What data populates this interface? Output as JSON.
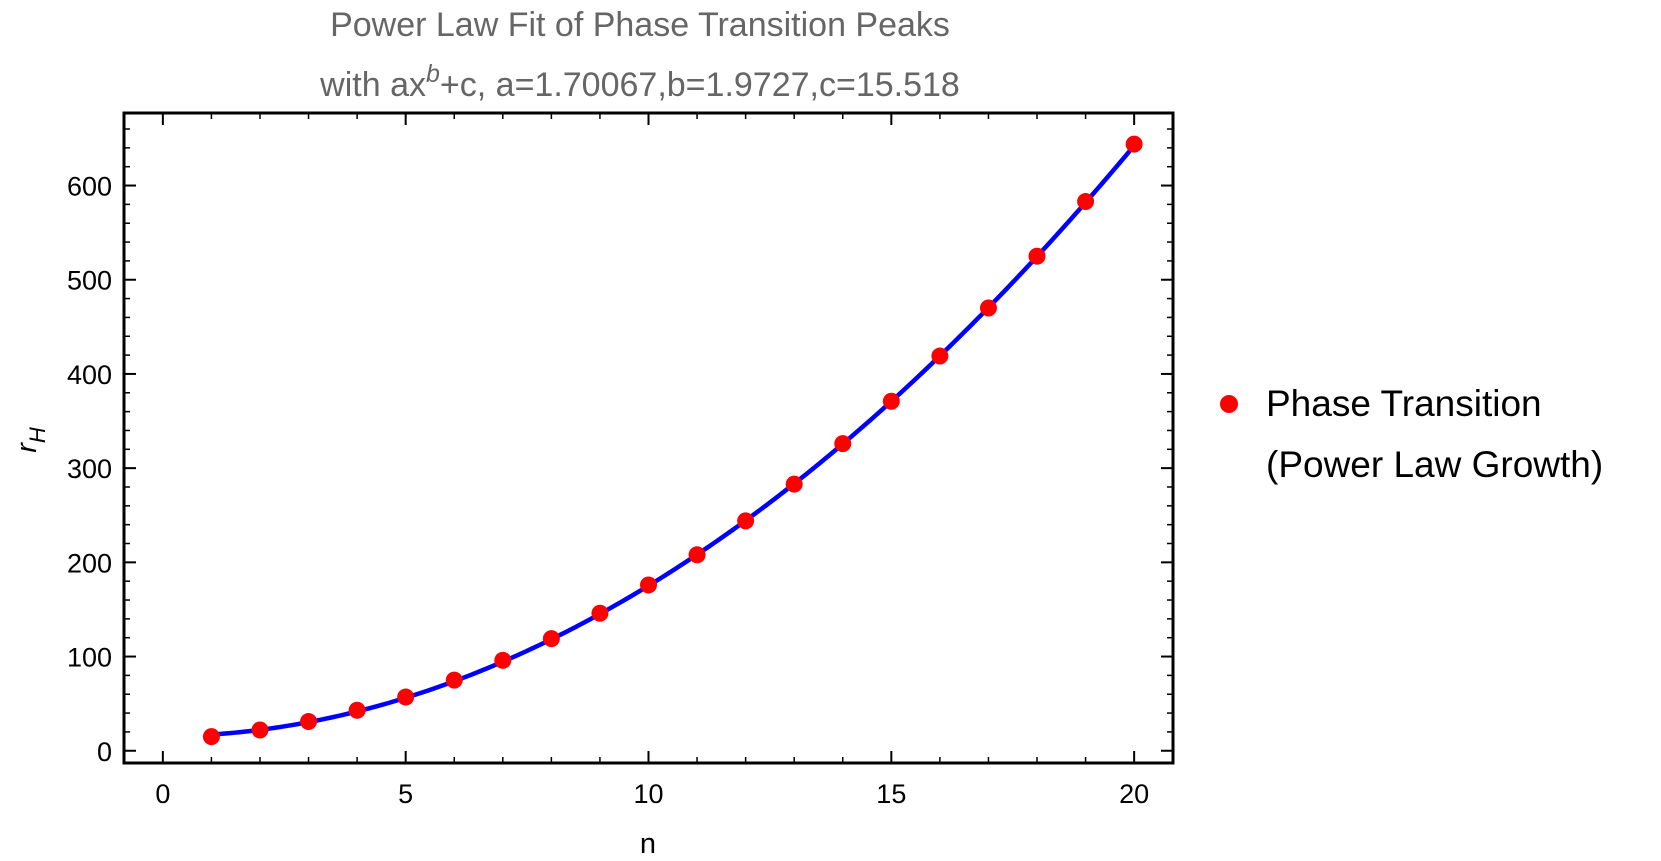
{
  "chart_data": {
    "type": "scatter",
    "title_line1": "Power Law Fit of Phase Transition Peaks",
    "title_line2_prefix": "with ax",
    "title_line2_exp": "b",
    "title_line2_suffix": "+c, a=1.70067,b=1.9727,c=15.518",
    "xlabel": "n",
    "ylabel_base": "r",
    "ylabel_sub": "H",
    "xlim": [
      -0.8,
      20.8
    ],
    "ylim": [
      -13,
      677
    ],
    "x_ticks": [
      0,
      5,
      10,
      15,
      20
    ],
    "y_ticks": [
      0,
      100,
      200,
      300,
      400,
      500,
      600
    ],
    "x_minor_step": 1,
    "y_minor_step": 20,
    "grid": false,
    "legend_position": "right",
    "legend_line1": "Phase Transition",
    "legend_line2": "(Power Law Growth)",
    "colors": {
      "points": "#ff0000",
      "fit": "#0000ff",
      "title": "#666666",
      "frame": "#000000"
    },
    "fit": {
      "a": 1.70067,
      "b": 1.9727,
      "c": 15.518
    },
    "series": [
      {
        "name": "Phase Transition (Power Law Growth)",
        "x": [
          1,
          2,
          3,
          4,
          5,
          6,
          7,
          8,
          9,
          10,
          11,
          12,
          13,
          14,
          15,
          16,
          17,
          18,
          19,
          20
        ],
        "y": [
          15,
          22,
          31,
          43,
          57,
          75,
          96,
          119,
          146,
          176,
          208,
          244,
          283,
          326,
          371,
          419,
          470,
          525,
          583,
          644
        ]
      }
    ]
  }
}
